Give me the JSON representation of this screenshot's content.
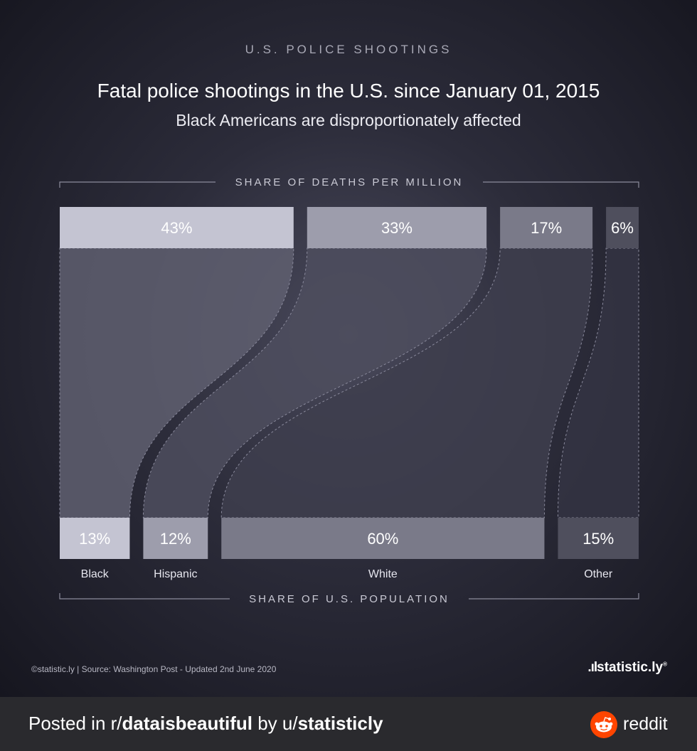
{
  "header": {
    "kicker": "U.S. POLICE SHOOTINGS",
    "title": "Fatal police shootings in the U.S. since January 01, 2015",
    "subtitle": "Black Americans are disproportionately affected"
  },
  "chart_data": {
    "type": "bar",
    "top_axis_label": "SHARE OF DEATHS PER MILLION",
    "bottom_axis_label": "SHARE OF U.S. POPULATION",
    "unit": "%",
    "categories": [
      "Black",
      "Hispanic",
      "White",
      "Other"
    ],
    "series": [
      {
        "name": "SHARE OF DEATHS PER MILLION",
        "values": [
          43,
          33,
          17,
          6
        ]
      },
      {
        "name": "SHARE OF U.S. POPULATION",
        "values": [
          13,
          12,
          60,
          15
        ]
      }
    ],
    "colors": {
      "top": [
        "#c4c4d2",
        "#9d9dac",
        "#7a7a89",
        "#4f4f5d"
      ],
      "bottom": [
        "#c4c4d2",
        "#9d9dac",
        "#7a7a89",
        "#4f4f5d"
      ]
    }
  },
  "footer_note": {
    "source": "©statistic.ly | Source: Washington Post - Updated 2nd June 2020",
    "logo_mark": ".ıl",
    "logo_text": "statistic.ly",
    "logo_sup": "®"
  },
  "reddit_bar": {
    "posted_in": "Posted in r/",
    "subreddit": "dataisbeautiful",
    "by": " by u/",
    "user": "statisticly",
    "brand": "reddit"
  }
}
